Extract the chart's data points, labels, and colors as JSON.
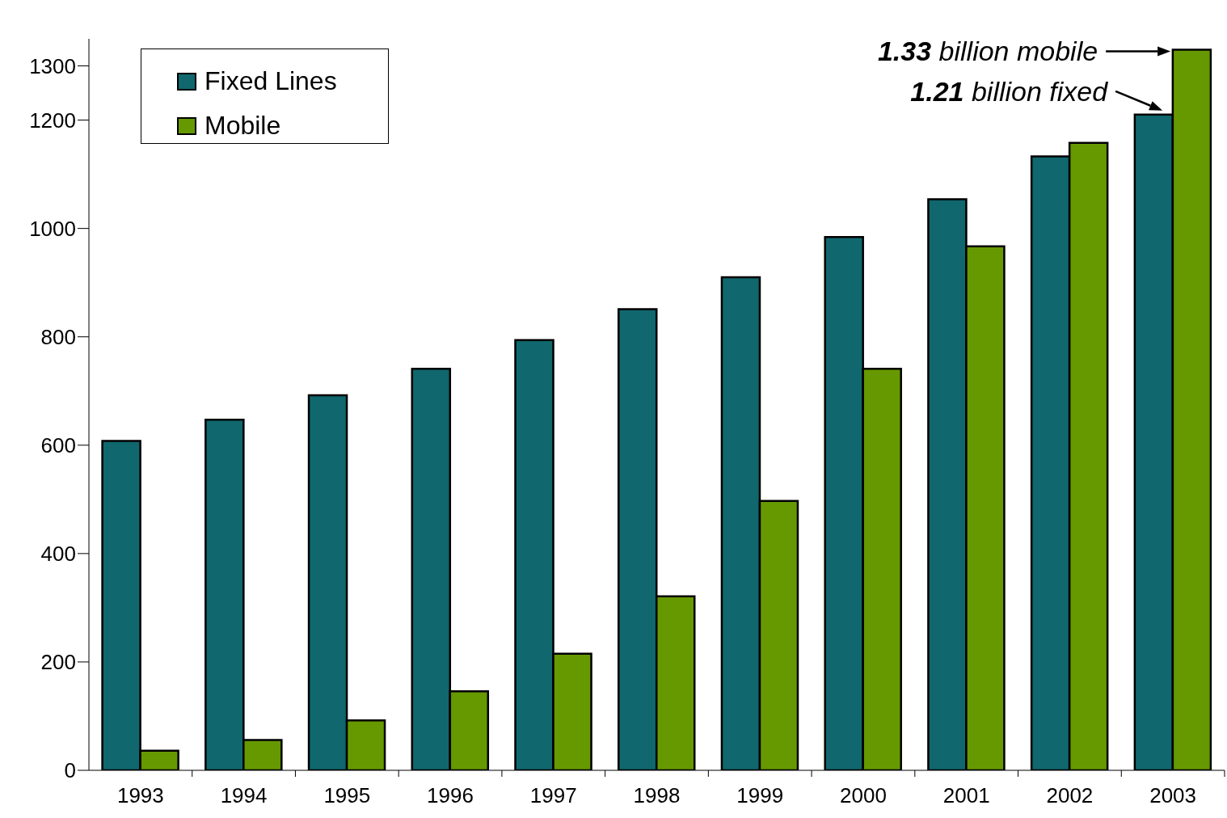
{
  "chart_data": {
    "type": "bar",
    "categories": [
      "1993",
      "1994",
      "1995",
      "1996",
      "1997",
      "1998",
      "1999",
      "2000",
      "2001",
      "2002",
      "2003"
    ],
    "series": [
      {
        "name": "Fixed Lines",
        "color": "#10676e",
        "values": [
          608,
          647,
          692,
          741,
          794,
          851,
          910,
          984,
          1054,
          1133,
          1210
        ]
      },
      {
        "name": "Mobile",
        "color": "#669900",
        "values": [
          36,
          56,
          92,
          146,
          215,
          321,
          497,
          741,
          967,
          1158,
          1330
        ]
      }
    ],
    "ylim": [
      0,
      1350
    ],
    "yticks": [
      0,
      200,
      400,
      600,
      800,
      1000,
      1200,
      1300
    ],
    "legend": "top left",
    "annotations": [
      {
        "text": "1.33 billion mobile",
        "x": "2003",
        "y": 1330
      },
      {
        "text": "1.21 billion fixed",
        "x": "2003",
        "y": 1210
      }
    ]
  }
}
